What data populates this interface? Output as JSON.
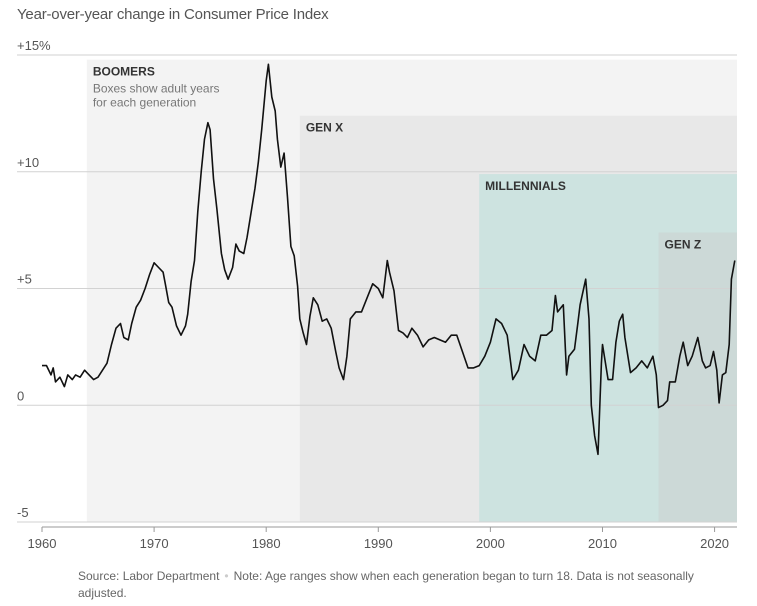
{
  "chart_data": {
    "type": "line",
    "title": "Year-over-year change in Consumer Price Index",
    "xlabel": "",
    "ylabel": "",
    "xlim": [
      1960,
      2022
    ],
    "ylim": [
      -5,
      15
    ],
    "y_ticks": [
      {
        "value": 15,
        "label": "+15%"
      },
      {
        "value": 10,
        "label": "+10"
      },
      {
        "value": 5,
        "label": "+5"
      },
      {
        "value": 0,
        "label": "0"
      },
      {
        "value": -5,
        "label": "-5"
      }
    ],
    "x_ticks": [
      {
        "value": 1960,
        "label": "1960"
      },
      {
        "value": 1970,
        "label": "1970"
      },
      {
        "value": 1980,
        "label": "1980"
      },
      {
        "value": 1990,
        "label": "1990"
      },
      {
        "value": 2000,
        "label": "2000"
      },
      {
        "value": 2010,
        "label": "2010"
      },
      {
        "value": 2020,
        "label": "2020"
      }
    ],
    "generations": [
      {
        "name": "BOOMERS",
        "note_lines": [
          "Boxes show adult years",
          "for each generation"
        ],
        "start": 1964,
        "end": 2022,
        "top_value": 14.8,
        "color": "#f3f3f3"
      },
      {
        "name": "GEN X",
        "note_lines": [],
        "start": 1983,
        "end": 2022,
        "top_value": 12.4,
        "color": "#e8e8e8"
      },
      {
        "name": "MILLENNIALS",
        "note_lines": [],
        "start": 1999,
        "end": 2022,
        "top_value": 9.9,
        "color": "#cde3e0"
      },
      {
        "name": "GEN Z",
        "note_lines": [],
        "start": 2015,
        "end": 2022,
        "top_value": 7.4,
        "color": "#ccd9d7"
      }
    ],
    "series": [
      {
        "name": "CPI year-over-year change (%)",
        "color": "#111111",
        "points": [
          [
            1960.0,
            1.7
          ],
          [
            1960.4,
            1.7
          ],
          [
            1960.8,
            1.3
          ],
          [
            1961.0,
            1.6
          ],
          [
            1961.2,
            1.0
          ],
          [
            1961.6,
            1.2
          ],
          [
            1962.0,
            0.8
          ],
          [
            1962.3,
            1.3
          ],
          [
            1962.7,
            1.1
          ],
          [
            1963.0,
            1.3
          ],
          [
            1963.4,
            1.2
          ],
          [
            1963.8,
            1.5
          ],
          [
            1964.2,
            1.3
          ],
          [
            1964.6,
            1.1
          ],
          [
            1965.0,
            1.2
          ],
          [
            1965.4,
            1.5
          ],
          [
            1965.8,
            1.8
          ],
          [
            1966.2,
            2.6
          ],
          [
            1966.6,
            3.3
          ],
          [
            1967.0,
            3.5
          ],
          [
            1967.3,
            2.9
          ],
          [
            1967.7,
            2.8
          ],
          [
            1968.0,
            3.5
          ],
          [
            1968.4,
            4.2
          ],
          [
            1968.8,
            4.5
          ],
          [
            1969.2,
            5.0
          ],
          [
            1969.6,
            5.6
          ],
          [
            1970.0,
            6.1
          ],
          [
            1970.4,
            5.9
          ],
          [
            1970.8,
            5.7
          ],
          [
            1971.0,
            5.2
          ],
          [
            1971.3,
            4.4
          ],
          [
            1971.6,
            4.2
          ],
          [
            1972.0,
            3.4
          ],
          [
            1972.4,
            3.0
          ],
          [
            1972.8,
            3.4
          ],
          [
            1973.0,
            3.9
          ],
          [
            1973.3,
            5.3
          ],
          [
            1973.6,
            6.2
          ],
          [
            1973.9,
            8.3
          ],
          [
            1974.2,
            10.0
          ],
          [
            1974.5,
            11.4
          ],
          [
            1974.8,
            12.1
          ],
          [
            1975.0,
            11.8
          ],
          [
            1975.3,
            9.7
          ],
          [
            1975.6,
            8.4
          ],
          [
            1976.0,
            6.5
          ],
          [
            1976.3,
            5.8
          ],
          [
            1976.6,
            5.4
          ],
          [
            1977.0,
            5.9
          ],
          [
            1977.3,
            6.9
          ],
          [
            1977.6,
            6.6
          ],
          [
            1978.0,
            6.5
          ],
          [
            1978.3,
            7.2
          ],
          [
            1978.6,
            8.1
          ],
          [
            1979.0,
            9.3
          ],
          [
            1979.3,
            10.4
          ],
          [
            1979.6,
            11.8
          ],
          [
            1980.0,
            13.9
          ],
          [
            1980.2,
            14.6
          ],
          [
            1980.5,
            13.2
          ],
          [
            1980.8,
            12.6
          ],
          [
            1981.0,
            11.4
          ],
          [
            1981.3,
            10.2
          ],
          [
            1981.6,
            10.8
          ],
          [
            1981.9,
            8.9
          ],
          [
            1982.2,
            6.8
          ],
          [
            1982.5,
            6.4
          ],
          [
            1982.8,
            5.1
          ],
          [
            1983.0,
            3.7
          ],
          [
            1983.3,
            3.1
          ],
          [
            1983.6,
            2.6
          ],
          [
            1983.9,
            3.8
          ],
          [
            1984.2,
            4.6
          ],
          [
            1984.6,
            4.3
          ],
          [
            1985.0,
            3.6
          ],
          [
            1985.4,
            3.7
          ],
          [
            1985.8,
            3.3
          ],
          [
            1986.2,
            2.3
          ],
          [
            1986.5,
            1.6
          ],
          [
            1986.9,
            1.1
          ],
          [
            1987.2,
            2.1
          ],
          [
            1987.5,
            3.7
          ],
          [
            1988.0,
            4.0
          ],
          [
            1988.5,
            4.0
          ],
          [
            1989.0,
            4.6
          ],
          [
            1989.5,
            5.2
          ],
          [
            1990.0,
            5.0
          ],
          [
            1990.4,
            4.6
          ],
          [
            1990.8,
            6.2
          ],
          [
            1991.0,
            5.7
          ],
          [
            1991.4,
            4.9
          ],
          [
            1991.8,
            3.2
          ],
          [
            1992.2,
            3.1
          ],
          [
            1992.6,
            2.9
          ],
          [
            1993.0,
            3.3
          ],
          [
            1993.5,
            3.0
          ],
          [
            1994.0,
            2.5
          ],
          [
            1994.5,
            2.8
          ],
          [
            1995.0,
            2.9
          ],
          [
            1995.5,
            2.8
          ],
          [
            1996.0,
            2.7
          ],
          [
            1996.5,
            3.0
          ],
          [
            1997.0,
            3.0
          ],
          [
            1997.5,
            2.3
          ],
          [
            1998.0,
            1.6
          ],
          [
            1998.5,
            1.6
          ],
          [
            1999.0,
            1.7
          ],
          [
            1999.5,
            2.1
          ],
          [
            2000.0,
            2.7
          ],
          [
            2000.5,
            3.7
          ],
          [
            2001.0,
            3.5
          ],
          [
            2001.5,
            3.0
          ],
          [
            2002.0,
            1.1
          ],
          [
            2002.5,
            1.5
          ],
          [
            2003.0,
            2.6
          ],
          [
            2003.5,
            2.1
          ],
          [
            2004.0,
            1.9
          ],
          [
            2004.5,
            3.0
          ],
          [
            2005.0,
            3.0
          ],
          [
            2005.5,
            3.2
          ],
          [
            2005.8,
            4.7
          ],
          [
            2006.0,
            4.0
          ],
          [
            2006.5,
            4.3
          ],
          [
            2006.8,
            1.3
          ],
          [
            2007.0,
            2.1
          ],
          [
            2007.5,
            2.4
          ],
          [
            2007.8,
            3.5
          ],
          [
            2008.0,
            4.3
          ],
          [
            2008.5,
            5.4
          ],
          [
            2008.8,
            3.7
          ],
          [
            2009.0,
            0.0
          ],
          [
            2009.3,
            -1.3
          ],
          [
            2009.6,
            -2.1
          ],
          [
            2009.9,
            1.8
          ],
          [
            2010.0,
            2.6
          ],
          [
            2010.5,
            1.1
          ],
          [
            2010.9,
            1.1
          ],
          [
            2011.2,
            2.7
          ],
          [
            2011.5,
            3.6
          ],
          [
            2011.8,
            3.9
          ],
          [
            2012.0,
            2.9
          ],
          [
            2012.5,
            1.4
          ],
          [
            2013.0,
            1.6
          ],
          [
            2013.5,
            1.9
          ],
          [
            2014.0,
            1.6
          ],
          [
            2014.5,
            2.1
          ],
          [
            2014.8,
            1.3
          ],
          [
            2015.0,
            -0.1
          ],
          [
            2015.4,
            0.0
          ],
          [
            2015.8,
            0.2
          ],
          [
            2016.0,
            1.0
          ],
          [
            2016.5,
            1.0
          ],
          [
            2016.9,
            2.1
          ],
          [
            2017.2,
            2.7
          ],
          [
            2017.6,
            1.7
          ],
          [
            2018.0,
            2.1
          ],
          [
            2018.5,
            2.9
          ],
          [
            2018.9,
            1.9
          ],
          [
            2019.2,
            1.6
          ],
          [
            2019.6,
            1.7
          ],
          [
            2019.9,
            2.3
          ],
          [
            2020.2,
            1.5
          ],
          [
            2020.4,
            0.1
          ],
          [
            2020.7,
            1.3
          ],
          [
            2021.0,
            1.4
          ],
          [
            2021.3,
            2.6
          ],
          [
            2021.5,
            5.4
          ],
          [
            2021.8,
            6.2
          ]
        ]
      }
    ]
  },
  "footer": {
    "source": "Source: Labor Department",
    "separator": "•",
    "note": "Note: Age ranges show when each generation began to turn 18. Data is not seasonally adjusted."
  }
}
